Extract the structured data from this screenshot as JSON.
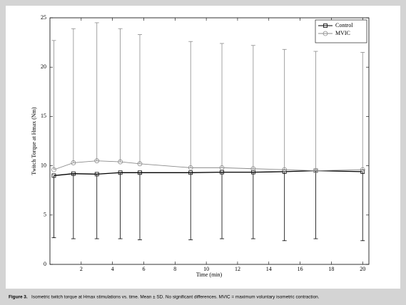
{
  "chart_data": {
    "type": "errorline",
    "x_label": "Time (min)",
    "y_label": "Twitch Torque at Hmax (Nm)",
    "x": [
      0.25,
      1.5,
      3,
      4.5,
      5.75,
      9,
      11,
      13,
      15,
      17,
      20
    ],
    "series": [
      {
        "name": "Control",
        "color": "#000000",
        "marker": "square",
        "error_direction": "down",
        "values": [
          9.0,
          9.2,
          9.15,
          9.3,
          9.3,
          9.3,
          9.35,
          9.35,
          9.4,
          9.5,
          9.4
        ],
        "errors": [
          6.3,
          6.6,
          6.55,
          6.7,
          6.8,
          6.8,
          6.75,
          6.75,
          7.0,
          6.9,
          7.0
        ]
      },
      {
        "name": "MVIC",
        "color": "#8c8c8c",
        "marker": "circle",
        "error_direction": "up",
        "values": [
          9.6,
          10.3,
          10.5,
          10.4,
          10.2,
          9.8,
          9.8,
          9.7,
          9.6,
          9.5,
          9.6
        ],
        "errors": [
          13.1,
          13.6,
          14.0,
          13.5,
          13.1,
          12.8,
          12.6,
          12.5,
          12.2,
          12.1,
          11.9
        ]
      }
    ],
    "xlim": [
      0,
      20.4
    ],
    "ylim": [
      0,
      25
    ],
    "xticks": [
      2,
      4,
      6,
      8,
      10,
      12,
      14,
      16,
      18,
      20
    ],
    "yticks": [
      0,
      5,
      10,
      15,
      20,
      25
    ],
    "legend": "top-right",
    "figure_label": "Figure 3.",
    "caption": "Isometric twitch torque at Hmax stimulations vs. time. Mean ± SD. No significant differences. MVIC = maximum voluntary isometric contraction."
  }
}
